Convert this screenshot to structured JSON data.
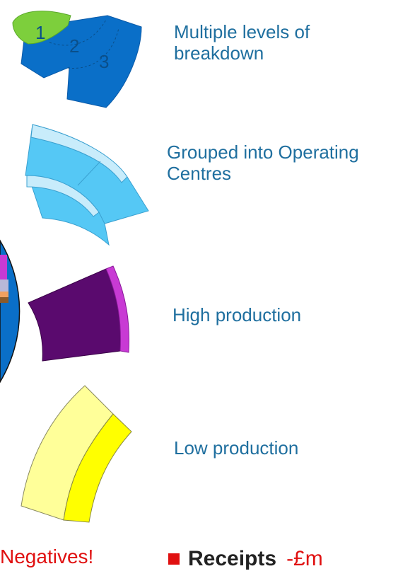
{
  "legend": {
    "items": [
      {
        "label": "Multiple levels of breakdown",
        "ring_numbers": [
          "1",
          "2",
          "3"
        ]
      },
      {
        "label": "Grouped into Operating Centres"
      },
      {
        "label": "High production"
      },
      {
        "label": "Low production"
      }
    ]
  },
  "footer": {
    "negatives_note": "Negatives!",
    "receipts_label": "Receipts",
    "receipts_unit": "-£m"
  },
  "colors": {
    "level1_green": "#7dcf3c",
    "level_blue": "#0a6fc8",
    "grouped_light_blue": "#55c8f5",
    "grouped_pale_band": "#c8ecfb",
    "high_production_purple": "#5a0a6e",
    "high_production_magenta": "#c83ad4",
    "low_production_pale_yellow": "#ffff99",
    "low_production_yellow": "#ffff00",
    "negatives_red": "#e01010",
    "label_teal": "#1f6f9f"
  }
}
